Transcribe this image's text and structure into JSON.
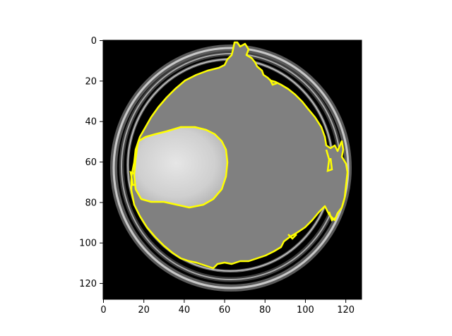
{
  "figure": {
    "x_ticks": [
      "0",
      "20",
      "40",
      "60",
      "80",
      "100",
      "120"
    ],
    "y_ticks": [
      "0",
      "20",
      "40",
      "60",
      "80",
      "100",
      "120"
    ],
    "x_range": [
      0,
      128
    ],
    "y_range": [
      0,
      128
    ],
    "y_axis_direction": "down",
    "colors": {
      "background": "#000000",
      "brain_region": "#808080",
      "lesion": "#d6d6d6",
      "contour": "#ffff00",
      "skull_ring": "#bdbdbd"
    }
  }
}
